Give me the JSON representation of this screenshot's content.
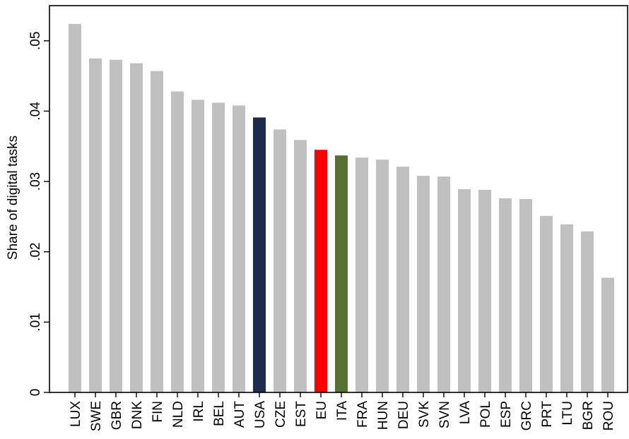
{
  "chart_data": {
    "type": "bar",
    "ylabel": "Share of digital tasks",
    "xlabel": "",
    "ylim": [
      0,
      0.055
    ],
    "yticks": [
      0,
      0.01,
      0.02,
      0.03,
      0.04,
      0.05
    ],
    "ytick_labels": [
      "0",
      ".01",
      ".02",
      ".03",
      ".04",
      ".05"
    ],
    "grid": false,
    "categories": [
      "LUX",
      "SWE",
      "GBR",
      "DNK",
      "FIN",
      "NLD",
      "IRL",
      "BEL",
      "AUT",
      "USA",
      "CZE",
      "EST",
      "EU",
      "ITA",
      "FRA",
      "HUN",
      "DEU",
      "SVK",
      "SVN",
      "LVA",
      "POL",
      "ESP",
      "GRC",
      "PRT",
      "LTU",
      "BGR",
      "ROU"
    ],
    "values": [
      0.0524,
      0.0475,
      0.0473,
      0.0468,
      0.0457,
      0.0428,
      0.0416,
      0.0412,
      0.0408,
      0.0391,
      0.0374,
      0.0359,
      0.0345,
      0.0337,
      0.0334,
      0.0331,
      0.0321,
      0.0308,
      0.0307,
      0.0289,
      0.0288,
      0.0276,
      0.0275,
      0.0251,
      0.0239,
      0.0229,
      0.0163
    ],
    "colors": {
      "default": "#c0c0c0",
      "USA": "#1c2b4e",
      "EU": "#ff0000",
      "ITA": "#557233"
    }
  }
}
